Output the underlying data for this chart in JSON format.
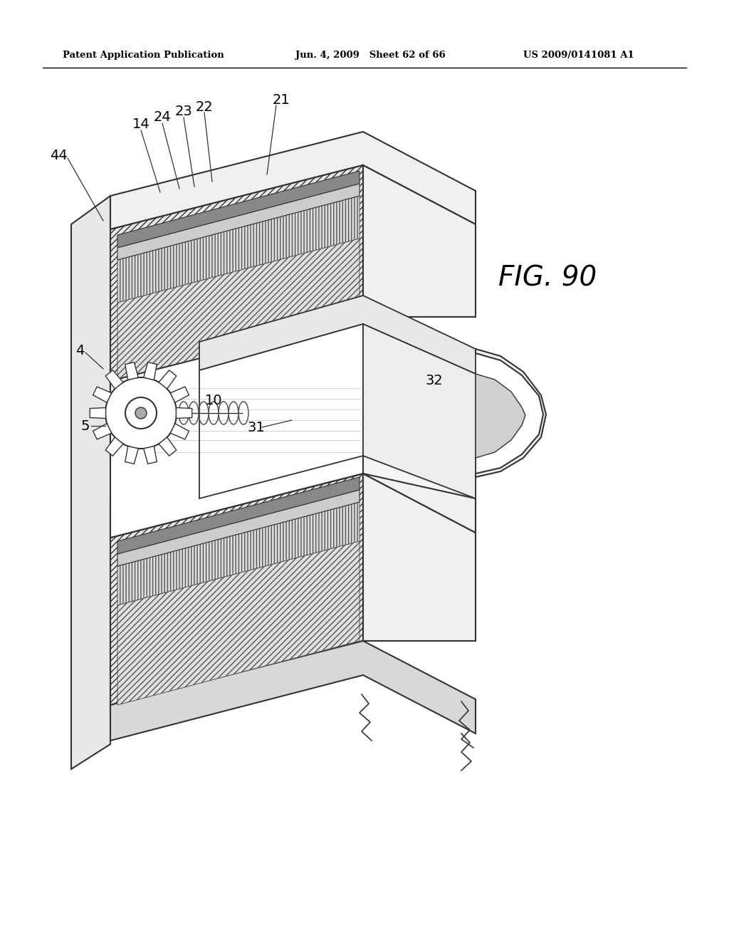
{
  "background_color": "#ffffff",
  "header_left": "Patent Application Publication",
  "header_center": "Jun. 4, 2009   Sheet 62 of 66",
  "header_right": "US 2009/0141081 A1",
  "fig_label": "FIG. 90",
  "line_color": "#222222",
  "hatch_color": "#555555",
  "label_fontsize": 14,
  "header_fontsize": 9.5,
  "fig_label_fontsize": 28
}
